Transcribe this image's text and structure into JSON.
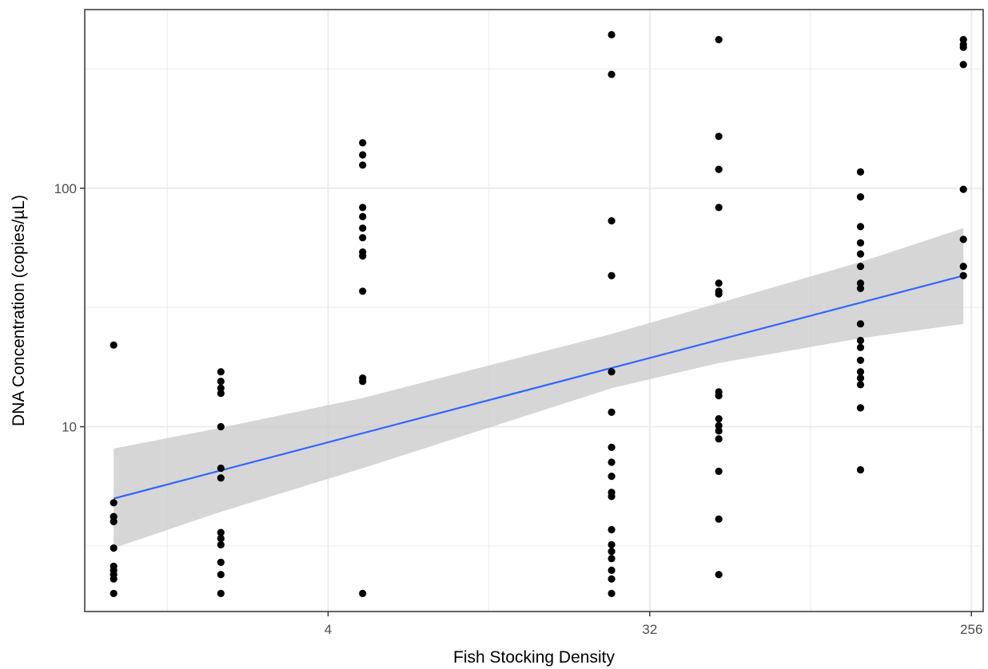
{
  "chart_data": {
    "type": "scatter",
    "title": "",
    "xlabel": "Fish Stocking Density",
    "ylabel": "DNA Concentration (copies/µL)",
    "x_scale": "log2",
    "y_scale": "log10",
    "xlim": [
      1,
      256
    ],
    "ylim": [
      1.8,
      500
    ],
    "x_ticks": [
      4,
      32,
      256
    ],
    "x_tick_labels": [
      "4",
      "32",
      "256"
    ],
    "y_ticks": [
      10,
      100
    ],
    "y_tick_labels": [
      "10",
      "100"
    ],
    "grid": true,
    "colors": {
      "points": "#000000",
      "fit_line": "#3366ff",
      "ribbon": "#cccccc",
      "panel_border": "#333333",
      "grid": "#ebebeb"
    },
    "points": [
      {
        "x": 1,
        "y": 22
      },
      {
        "x": 1,
        "y": 4.8
      },
      {
        "x": 1,
        "y": 4.2
      },
      {
        "x": 1,
        "y": 4.0
      },
      {
        "x": 1,
        "y": 3.1
      },
      {
        "x": 1,
        "y": 2.6
      },
      {
        "x": 1,
        "y": 2.5
      },
      {
        "x": 1,
        "y": 2.4
      },
      {
        "x": 1,
        "y": 2.3
      },
      {
        "x": 1,
        "y": 2.0
      },
      {
        "x": 2,
        "y": 17
      },
      {
        "x": 2,
        "y": 15.5
      },
      {
        "x": 2,
        "y": 14.5
      },
      {
        "x": 2,
        "y": 13.8
      },
      {
        "x": 2,
        "y": 10
      },
      {
        "x": 2,
        "y": 6.7
      },
      {
        "x": 2,
        "y": 6.1
      },
      {
        "x": 2,
        "y": 3.6
      },
      {
        "x": 2,
        "y": 3.4
      },
      {
        "x": 2,
        "y": 3.2
      },
      {
        "x": 2,
        "y": 2.7
      },
      {
        "x": 2,
        "y": 2.4
      },
      {
        "x": 2,
        "y": 2.0
      },
      {
        "x": 5,
        "y": 155
      },
      {
        "x": 5,
        "y": 138
      },
      {
        "x": 5,
        "y": 125
      },
      {
        "x": 5,
        "y": 83
      },
      {
        "x": 5,
        "y": 76
      },
      {
        "x": 5,
        "y": 68
      },
      {
        "x": 5,
        "y": 62
      },
      {
        "x": 5,
        "y": 54
      },
      {
        "x": 5,
        "y": 52
      },
      {
        "x": 5,
        "y": 37
      },
      {
        "x": 5,
        "y": 16
      },
      {
        "x": 5,
        "y": 15.5
      },
      {
        "x": 5,
        "y": 2.0
      },
      {
        "x": 25,
        "y": 440
      },
      {
        "x": 25,
        "y": 300
      },
      {
        "x": 25,
        "y": 73
      },
      {
        "x": 25,
        "y": 43
      },
      {
        "x": 25,
        "y": 17
      },
      {
        "x": 25,
        "y": 11.5
      },
      {
        "x": 25,
        "y": 8.2
      },
      {
        "x": 25,
        "y": 7.1
      },
      {
        "x": 25,
        "y": 6.2
      },
      {
        "x": 25,
        "y": 5.3
      },
      {
        "x": 25,
        "y": 5.1
      },
      {
        "x": 25,
        "y": 3.7
      },
      {
        "x": 25,
        "y": 3.2
      },
      {
        "x": 25,
        "y": 3.0
      },
      {
        "x": 25,
        "y": 2.8
      },
      {
        "x": 25,
        "y": 2.5
      },
      {
        "x": 25,
        "y": 2.3
      },
      {
        "x": 25,
        "y": 2.0
      },
      {
        "x": 50,
        "y": 420
      },
      {
        "x": 50,
        "y": 165
      },
      {
        "x": 50,
        "y": 120
      },
      {
        "x": 50,
        "y": 83
      },
      {
        "x": 50,
        "y": 40
      },
      {
        "x": 50,
        "y": 37
      },
      {
        "x": 50,
        "y": 36
      },
      {
        "x": 50,
        "y": 14
      },
      {
        "x": 50,
        "y": 13.5
      },
      {
        "x": 50,
        "y": 10.8
      },
      {
        "x": 50,
        "y": 10.1
      },
      {
        "x": 50,
        "y": 9.6
      },
      {
        "x": 50,
        "y": 8.9
      },
      {
        "x": 50,
        "y": 6.5
      },
      {
        "x": 50,
        "y": 4.1
      },
      {
        "x": 50,
        "y": 2.4
      },
      {
        "x": 125,
        "y": 117
      },
      {
        "x": 125,
        "y": 92
      },
      {
        "x": 125,
        "y": 69
      },
      {
        "x": 125,
        "y": 59
      },
      {
        "x": 125,
        "y": 53
      },
      {
        "x": 125,
        "y": 47
      },
      {
        "x": 125,
        "y": 40
      },
      {
        "x": 125,
        "y": 38
      },
      {
        "x": 125,
        "y": 27
      },
      {
        "x": 125,
        "y": 23
      },
      {
        "x": 125,
        "y": 21.5
      },
      {
        "x": 125,
        "y": 19
      },
      {
        "x": 125,
        "y": 17
      },
      {
        "x": 125,
        "y": 16
      },
      {
        "x": 125,
        "y": 15
      },
      {
        "x": 125,
        "y": 12
      },
      {
        "x": 125,
        "y": 6.6
      },
      {
        "x": 243,
        "y": 420
      },
      {
        "x": 243,
        "y": 400
      },
      {
        "x": 243,
        "y": 390
      },
      {
        "x": 243,
        "y": 330
      },
      {
        "x": 243,
        "y": 99
      },
      {
        "x": 243,
        "y": 61
      },
      {
        "x": 243,
        "y": 47
      },
      {
        "x": 243,
        "y": 43
      }
    ],
    "fit_line": {
      "x": [
        1,
        243
      ],
      "y": [
        5.0,
        43
      ]
    },
    "confidence_band": {
      "x": [
        1,
        2,
        5,
        25,
        50,
        125,
        243
      ],
      "lower": [
        3.1,
        4.4,
        6.7,
        14.5,
        18.5,
        23.5,
        27
      ],
      "upper": [
        8.1,
        9.9,
        13.2,
        24.5,
        33,
        49,
        68
      ]
    }
  }
}
